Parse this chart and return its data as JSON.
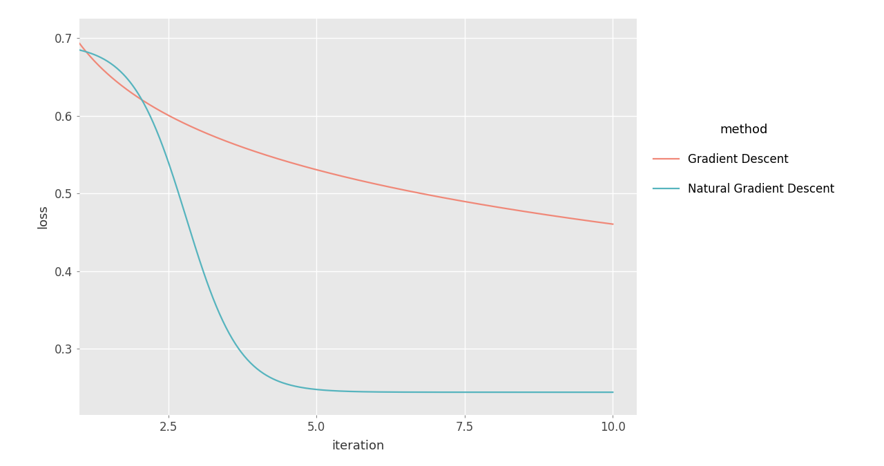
{
  "title": "",
  "xlabel": "iteration",
  "ylabel": "loss",
  "legend_title": "method",
  "plot_bg_color": "#E8E8E8",
  "fig_bg_color": "#FFFFFF",
  "grid_color": "#FFFFFF",
  "gd_color": "#F08878",
  "ngd_color": "#56B4BE",
  "gd_label": "Gradient Descent",
  "ngd_label": "Natural Gradient Descent",
  "xlim": [
    1,
    10.4
  ],
  "ylim": [
    0.215,
    0.725
  ],
  "xticks": [
    2.5,
    5.0,
    7.5,
    10.0
  ],
  "yticks": [
    0.3,
    0.4,
    0.5,
    0.6,
    0.7
  ],
  "line_width": 1.6
}
